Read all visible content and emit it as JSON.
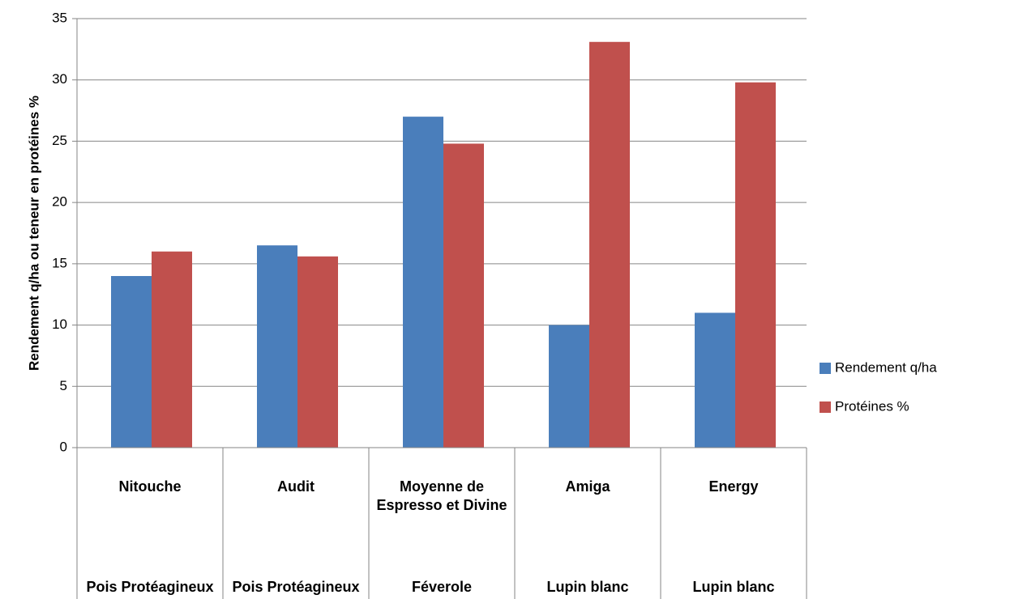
{
  "chart_data": {
    "type": "bar",
    "ylabel": "Rendement q/ha ou teneur en protéines %",
    "categories": [
      "Nitouche",
      "Audit",
      "Moyenne de Espresso et Divine",
      "Amiga",
      "Energy"
    ],
    "category_groups": [
      "Pois Protéagineux",
      "Pois Protéagineux",
      "Féverole",
      "Lupin blanc",
      "Lupin blanc"
    ],
    "series": [
      {
        "name": "Rendement q/ha",
        "color": "#4a7ebb",
        "values": [
          14,
          16.5,
          27,
          10,
          11
        ]
      },
      {
        "name": "Protéines %",
        "color": "#c0504d",
        "values": [
          16,
          15.6,
          24.8,
          33.1,
          29.8
        ]
      }
    ],
    "ylim": [
      0,
      35
    ],
    "yticks": [
      0,
      5,
      10,
      15,
      20,
      25,
      30,
      35
    ],
    "grid": true,
    "legend": "right"
  }
}
